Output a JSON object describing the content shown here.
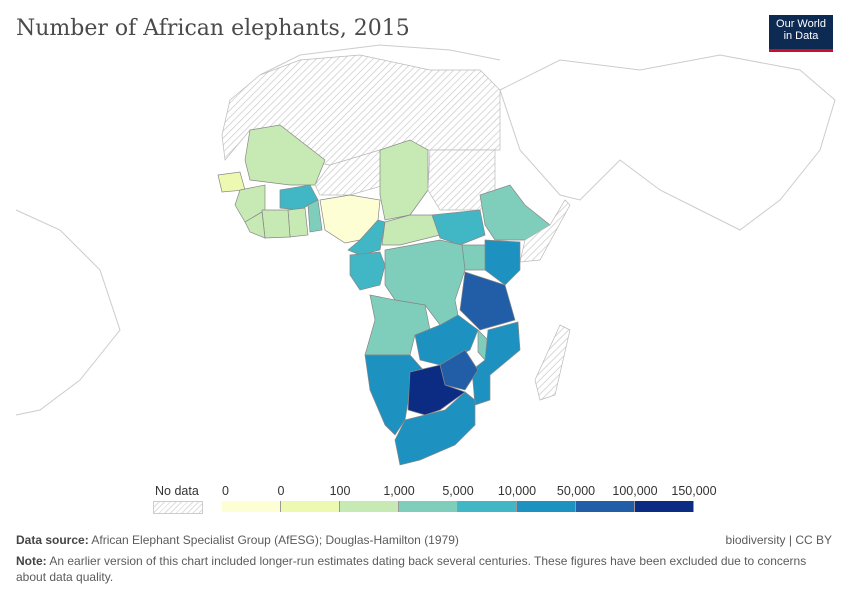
{
  "title": "Number of African elephants, 2015",
  "logo": {
    "line1": "Our World",
    "line2": "in Data"
  },
  "chart_data": {
    "type": "choropleth",
    "title": "Number of African elephants, 2015",
    "legend": {
      "no_data": "No data",
      "ticks": [
        "0",
        "0",
        "100",
        "1,000",
        "5,000",
        "10,000",
        "50,000",
        "100,000",
        "150,000"
      ],
      "colors": [
        "#fefed4",
        "#edf8b1",
        "#c7e9b4",
        "#7fcdbb",
        "#41b6c4",
        "#1d91c0",
        "#225ea8",
        "#0c2c84"
      ],
      "no_data_color": "#eeeeee"
    },
    "country_bins": {
      "Senegal": 1,
      "Mali": 2,
      "Guinea": 2,
      "Liberia": 2,
      "Ivory Coast": 2,
      "Ghana": 2,
      "Burkina Faso": 4,
      "Togo/Benin": 3,
      "Nigeria": 0,
      "Chad": 2,
      "Cameroon": 4,
      "Central African Republic": 2,
      "South Sudan": 4,
      "Ethiopia": 3,
      "Kenya": 5,
      "Uganda": 3,
      "Gabon/Congo": 4,
      "DR Congo": 3,
      "Tanzania": 6,
      "Angola": 3,
      "Zambia": 5,
      "Malawi": 3,
      "Mozambique": 5,
      "Zimbabwe": 6,
      "Namibia": 5,
      "Botswana": 7,
      "South Africa": 5
    }
  },
  "footer": {
    "source_label": "Data source:",
    "source": "African Elephant Specialist Group (AfESG); Douglas-Hamilton (1979)",
    "license": "biodiversity | CC BY",
    "note_label": "Note:",
    "note": "An earlier version of this chart included longer-run estimates dating back several centuries. These figures have been excluded due to concerns about data quality."
  }
}
